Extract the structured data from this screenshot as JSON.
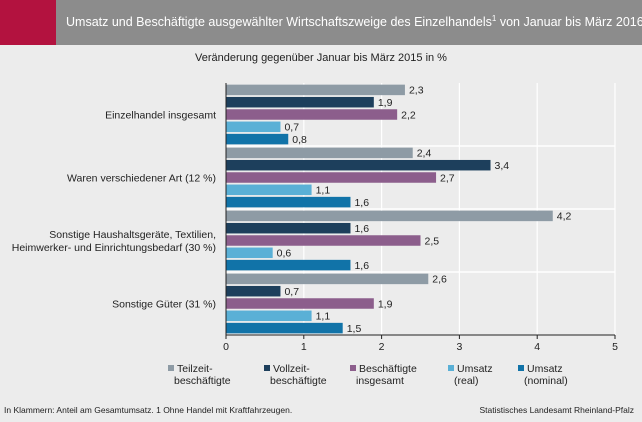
{
  "header": {
    "title": "Umsatz und Beschäftigte ausgewählter Wirtschaftszweige des Einzelhandels",
    "title_sup": "1",
    "title_rest": " von Januar bis März 2016",
    "accent_color": "#b3123f",
    "bar_color": "#8c8c8c"
  },
  "footer": {
    "note": "In Klammern: Anteil am Gesamtumsatz. 1 Ohne Handel mit Kraftfahrzeugen.",
    "source": "Statistisches Landesamt Rheinland-Pfalz"
  },
  "chart_data": {
    "type": "bar",
    "orientation": "horizontal",
    "title": "Veränderung gegenüber  Januar bis März 2015 in %",
    "categories": [
      [
        "Einzelhandel insgesamt"
      ],
      [
        "Waren verschiedener Art (12 %)"
      ],
      [
        "Sonstige Haushaltsgeräte, Textilien,",
        "Heimwerker- und Einrichtungsbedarf (30 %)"
      ],
      [
        "Sonstige Güter (31 %)"
      ]
    ],
    "series": [
      {
        "name": [
          "Teilzeit-",
          "beschäftigte"
        ],
        "color": "#8e9ba5",
        "values": [
          2.3,
          2.4,
          4.2,
          2.6
        ],
        "labels": [
          "2,3",
          "2,4",
          "4,2",
          "2,6"
        ]
      },
      {
        "name": [
          "Vollzeit-",
          "beschäftigte"
        ],
        "color": "#1d3f5c",
        "values": [
          1.9,
          3.4,
          1.6,
          0.7
        ],
        "labels": [
          "1,9",
          "3,4",
          "1,6",
          "0,7"
        ]
      },
      {
        "name": [
          "Beschäftigte",
          "insgesamt"
        ],
        "color": "#8c5e8c",
        "values": [
          2.2,
          2.7,
          2.5,
          1.9
        ],
        "labels": [
          "2,2",
          "2,7",
          "2,5",
          "1,9"
        ]
      },
      {
        "name": [
          "Umsatz",
          "(real)"
        ],
        "color": "#5ab0d6",
        "values": [
          0.7,
          1.1,
          0.6,
          1.1
        ],
        "labels": [
          "0,7",
          "1,1",
          "0,6",
          "1,1"
        ]
      },
      {
        "name": [
          "Umsatz",
          "(nominal)"
        ],
        "color": "#1173a8",
        "values": [
          0.8,
          1.6,
          1.6,
          1.5
        ],
        "labels": [
          "0,8",
          "1,6",
          "1,6",
          "1,5"
        ]
      }
    ],
    "xlim": [
      0,
      5
    ],
    "xticks": [
      0,
      1,
      2,
      3,
      4,
      5
    ],
    "xtick_labels": [
      "0",
      "1",
      "2",
      "3",
      "4",
      "5"
    ],
    "grid": true,
    "legend_position": "bottom"
  }
}
